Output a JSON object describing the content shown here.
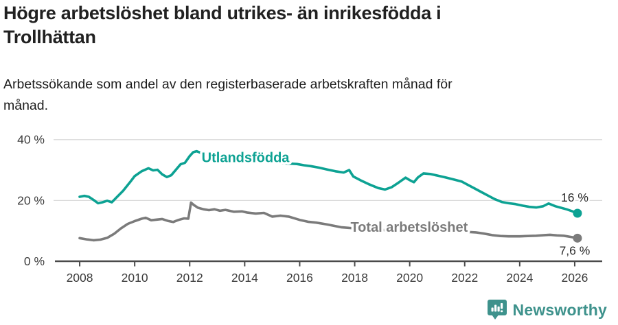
{
  "header": {
    "title_lines": [
      "Högre arbetslöshet bland utrikes- än inrikesfödda i",
      "Trollhättan"
    ],
    "subtitle_lines": [
      "Arbetssökande som andel av den registerbaserade arbetskraften månad för",
      "månad."
    ]
  },
  "footer": {
    "brand": "Newsworthy"
  },
  "colors": {
    "foreign_born_line": "#0DA293",
    "total_line": "#7B7B7B",
    "gridline": "#DADADA",
    "axis": "#4A4A4A",
    "tick_label": "#3C3C3C",
    "annotation_text": "#2B2B2B",
    "brand_teal": "#3E928C"
  },
  "chart_data": {
    "type": "line",
    "title": "Högre arbetslöshet bland utrikes- än inrikesfödda i Trollhättan",
    "subtitle": "Arbetssökande som andel av den registerbaserade arbetskraften månad för månad.",
    "xlabel": "",
    "ylabel": "",
    "x_unit": "year",
    "y_unit": "%",
    "xlim": [
      2007.1,
      2027.0
    ],
    "ylim": [
      0,
      44
    ],
    "grid": "horizontal",
    "legend_position": "inline-on-line",
    "xticks": [
      {
        "v": 2008,
        "label": "2008"
      },
      {
        "v": 2010,
        "label": "2010"
      },
      {
        "v": 2012,
        "label": "2012"
      },
      {
        "v": 2014,
        "label": "2014"
      },
      {
        "v": 2016,
        "label": "2016"
      },
      {
        "v": 2018,
        "label": "2018"
      },
      {
        "v": 2020,
        "label": "2020"
      },
      {
        "v": 2022,
        "label": "2022"
      },
      {
        "v": 2024,
        "label": "2024"
      },
      {
        "v": 2026,
        "label": "2026"
      }
    ],
    "yticks": [
      {
        "v": 0,
        "label": "0 %"
      },
      {
        "v": 20,
        "label": "20 %"
      },
      {
        "v": 40,
        "label": "40 %"
      }
    ],
    "series": [
      {
        "name": "Utlandsfödda",
        "color": "#0DA293",
        "end_label": "16 %",
        "label_anchor": [
          2014.03,
          34.2
        ],
        "points": [
          [
            2008.0,
            21.2
          ],
          [
            2008.17,
            21.5
          ],
          [
            2008.33,
            21.2
          ],
          [
            2008.5,
            20.2
          ],
          [
            2008.67,
            19.1
          ],
          [
            2008.83,
            19.4
          ],
          [
            2009.0,
            19.9
          ],
          [
            2009.17,
            19.4
          ],
          [
            2009.33,
            20.9
          ],
          [
            2009.58,
            23.2
          ],
          [
            2009.83,
            26.0
          ],
          [
            2010.0,
            28.0
          ],
          [
            2010.25,
            29.6
          ],
          [
            2010.5,
            30.6
          ],
          [
            2010.67,
            29.9
          ],
          [
            2010.83,
            30.1
          ],
          [
            2011.0,
            28.6
          ],
          [
            2011.17,
            27.7
          ],
          [
            2011.33,
            28.3
          ],
          [
            2011.5,
            30.1
          ],
          [
            2011.67,
            31.9
          ],
          [
            2011.83,
            32.4
          ],
          [
            2012.0,
            34.6
          ],
          [
            2012.13,
            35.9
          ],
          [
            2012.25,
            36.2
          ],
          [
            2012.4,
            35.7
          ],
          [
            2012.6,
            35.3
          ],
          [
            2013.0,
            34.6
          ],
          [
            2013.5,
            33.9
          ],
          [
            2014.0,
            33.4
          ],
          [
            2014.5,
            33.0
          ],
          [
            2015.0,
            32.6
          ],
          [
            2015.5,
            32.2
          ],
          [
            2015.9,
            32.0
          ],
          [
            2016.15,
            31.6
          ],
          [
            2016.4,
            31.3
          ],
          [
            2016.7,
            30.8
          ],
          [
            2017.0,
            30.2
          ],
          [
            2017.3,
            29.6
          ],
          [
            2017.6,
            29.2
          ],
          [
            2017.8,
            30.0
          ],
          [
            2017.95,
            27.9
          ],
          [
            2018.2,
            26.7
          ],
          [
            2018.5,
            25.4
          ],
          [
            2018.85,
            24.1
          ],
          [
            2019.1,
            23.6
          ],
          [
            2019.35,
            24.4
          ],
          [
            2019.6,
            25.9
          ],
          [
            2019.85,
            27.5
          ],
          [
            2020.0,
            26.7
          ],
          [
            2020.15,
            26.0
          ],
          [
            2020.3,
            27.6
          ],
          [
            2020.5,
            28.9
          ],
          [
            2020.75,
            28.7
          ],
          [
            2021.0,
            28.2
          ],
          [
            2021.3,
            27.6
          ],
          [
            2021.6,
            26.9
          ],
          [
            2021.9,
            26.2
          ],
          [
            2022.1,
            25.2
          ],
          [
            2022.35,
            24.0
          ],
          [
            2022.6,
            22.8
          ],
          [
            2022.85,
            21.6
          ],
          [
            2023.1,
            20.4
          ],
          [
            2023.35,
            19.5
          ],
          [
            2023.6,
            19.1
          ],
          [
            2023.85,
            18.8
          ],
          [
            2024.1,
            18.3
          ],
          [
            2024.35,
            17.9
          ],
          [
            2024.6,
            17.7
          ],
          [
            2024.85,
            18.1
          ],
          [
            2025.05,
            19.0
          ],
          [
            2025.3,
            18.1
          ],
          [
            2025.5,
            17.6
          ],
          [
            2025.7,
            17.1
          ],
          [
            2025.9,
            16.5
          ],
          [
            2026.1,
            15.8
          ]
        ]
      },
      {
        "name": "Total arbetslöshet",
        "color": "#7B7B7B",
        "end_label": "7,6 %",
        "label_anchor": [
          2019.98,
          11.3
        ],
        "points": [
          [
            2008.0,
            7.6
          ],
          [
            2008.25,
            7.2
          ],
          [
            2008.5,
            6.9
          ],
          [
            2008.75,
            7.1
          ],
          [
            2009.0,
            7.7
          ],
          [
            2009.25,
            9.0
          ],
          [
            2009.5,
            10.8
          ],
          [
            2009.75,
            12.3
          ],
          [
            2010.0,
            13.2
          ],
          [
            2010.25,
            14.0
          ],
          [
            2010.4,
            14.3
          ],
          [
            2010.6,
            13.5
          ],
          [
            2010.8,
            13.7
          ],
          [
            2011.0,
            13.9
          ],
          [
            2011.2,
            13.3
          ],
          [
            2011.4,
            12.9
          ],
          [
            2011.6,
            13.6
          ],
          [
            2011.8,
            14.1
          ],
          [
            2011.95,
            14.0
          ],
          [
            2012.05,
            19.3
          ],
          [
            2012.15,
            18.5
          ],
          [
            2012.3,
            17.6
          ],
          [
            2012.5,
            17.1
          ],
          [
            2012.7,
            16.8
          ],
          [
            2012.9,
            17.1
          ],
          [
            2013.1,
            16.6
          ],
          [
            2013.3,
            16.9
          ],
          [
            2013.6,
            16.3
          ],
          [
            2013.9,
            16.4
          ],
          [
            2014.1,
            16.0
          ],
          [
            2014.4,
            15.7
          ],
          [
            2014.7,
            15.9
          ],
          [
            2015.0,
            14.7
          ],
          [
            2015.3,
            15.0
          ],
          [
            2015.6,
            14.7
          ],
          [
            2016.0,
            13.6
          ],
          [
            2016.3,
            13.0
          ],
          [
            2016.6,
            12.7
          ],
          [
            2017.0,
            12.1
          ],
          [
            2017.5,
            11.2
          ],
          [
            2018.0,
            10.8
          ],
          [
            2018.5,
            10.5
          ],
          [
            2019.0,
            10.3
          ],
          [
            2019.5,
            10.1
          ],
          [
            2020.0,
            10.2
          ],
          [
            2020.5,
            10.3
          ],
          [
            2021.0,
            10.1
          ],
          [
            2021.5,
            9.9
          ],
          [
            2022.0,
            9.7
          ],
          [
            2022.4,
            9.5
          ],
          [
            2022.7,
            9.1
          ],
          [
            2023.0,
            8.6
          ],
          [
            2023.3,
            8.3
          ],
          [
            2023.6,
            8.2
          ],
          [
            2024.0,
            8.2
          ],
          [
            2024.3,
            8.3
          ],
          [
            2024.6,
            8.4
          ],
          [
            2024.9,
            8.6
          ],
          [
            2025.1,
            8.7
          ],
          [
            2025.35,
            8.5
          ],
          [
            2025.6,
            8.4
          ],
          [
            2025.85,
            8.0
          ],
          [
            2026.1,
            7.6
          ]
        ]
      }
    ]
  }
}
